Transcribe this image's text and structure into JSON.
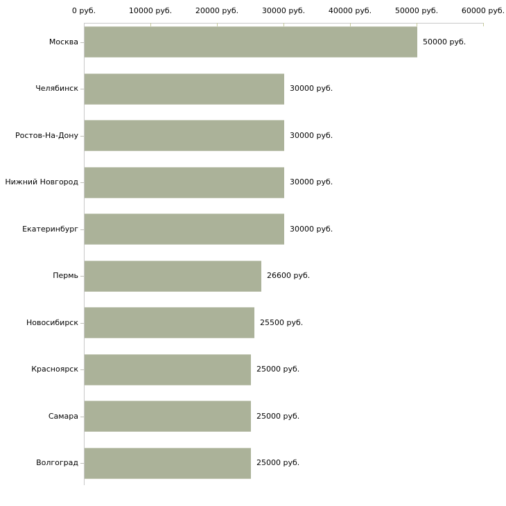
{
  "chart_data": {
    "type": "bar",
    "orientation": "horizontal",
    "title": "",
    "xlabel": "",
    "ylabel": "",
    "xlim": [
      0,
      60000
    ],
    "grid": false,
    "legend": false,
    "x_axis_position": "top",
    "x_tick_values": [
      0,
      10000,
      20000,
      30000,
      40000,
      50000,
      60000
    ],
    "x_tick_labels": [
      "0 руб.",
      "10000 руб.",
      "20000 руб.",
      "30000 руб.",
      "40000 руб.",
      "50000 руб.",
      "60000 руб."
    ],
    "categories": [
      "Москва",
      "Челябинск",
      "Ростов-На-Дону",
      "Нижний Новгород",
      "Екатеринбург",
      "Пермь",
      "Новосибирск",
      "Красноярск",
      "Самара",
      "Волгоград"
    ],
    "values": [
      50000,
      30000,
      30000,
      30000,
      30000,
      26600,
      25500,
      25000,
      25000,
      25000
    ],
    "value_labels": [
      "50000 руб.",
      "30000 руб.",
      "30000 руб.",
      "30000 руб.",
      "30000 руб.",
      "26600 руб.",
      "25500 руб.",
      "25000 руб.",
      "25000 руб.",
      "25000 руб."
    ],
    "colors": {
      "bar": "#abb299",
      "axis_line": "#c9c9c9",
      "x_tick": "#c6ca9c",
      "category_tick": "#bdbdb5",
      "text": "#000000",
      "background": "#ffffff"
    }
  }
}
